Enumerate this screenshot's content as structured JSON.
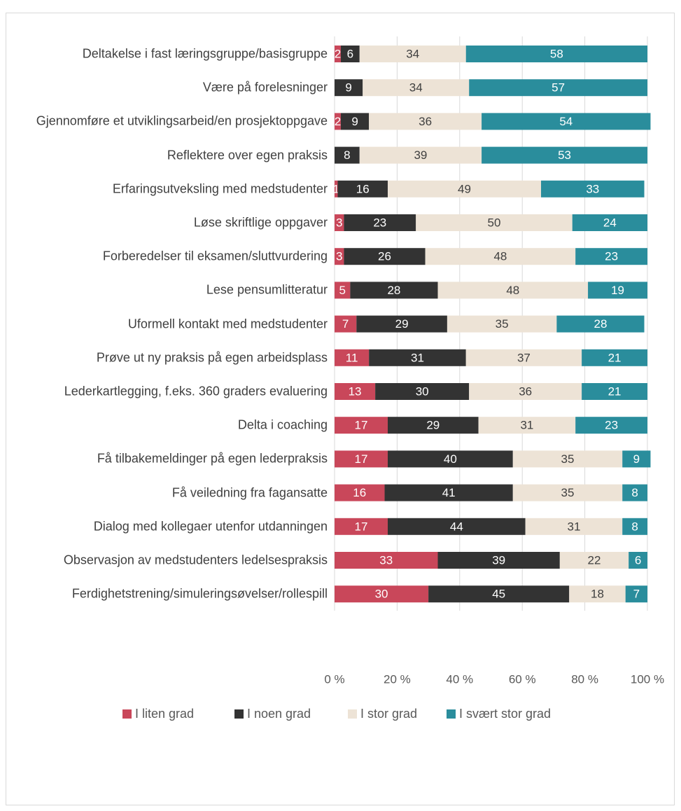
{
  "chart_data": {
    "type": "stacked_barh",
    "categories": [
      "Deltakelse i fast læringsgruppe/basisgruppe",
      "Være på forelesninger",
      "Gjennomføre et utviklingsarbeid/en prosjektoppgave",
      "Reflektere over egen praksis",
      "Erfaringsutveksling med medstudenter",
      "Løse skriftlige oppgaver",
      "Forberedelser til eksamen/sluttvurdering",
      "Lese pensumlitteratur",
      "Uformell kontakt med medstudenter",
      "Prøve ut ny praksis på egen arbeidsplass",
      "Lederkartlegging, f.eks. 360 graders evaluering",
      "Delta i coaching",
      "Få tilbakemeldinger på egen lederpraksis",
      "Få veiledning fra fagansatte",
      "Dialog med kollegaer utenfor utdanningen",
      "Observasjon av medstudenters ledelsespraksis",
      "Ferdighetstrening/simuleringsøvelser/rollespill"
    ],
    "series": [
      {
        "name": "I liten grad",
        "color": "#c9475a",
        "values": [
          2,
          null,
          2,
          null,
          1,
          3,
          3,
          5,
          7,
          11,
          13,
          17,
          17,
          16,
          17,
          33,
          30
        ]
      },
      {
        "name": "I noen grad",
        "color": "#333333",
        "values": [
          6,
          9,
          9,
          8,
          16,
          23,
          26,
          28,
          29,
          31,
          30,
          29,
          40,
          41,
          44,
          39,
          45
        ]
      },
      {
        "name": "I stor grad",
        "color": "#ede3d6",
        "values": [
          34,
          34,
          36,
          39,
          49,
          50,
          48,
          48,
          35,
          37,
          36,
          31,
          35,
          35,
          31,
          22,
          18
        ]
      },
      {
        "name": "I svært stor grad",
        "color": "#2a8d9c",
        "values": [
          58,
          57,
          54,
          53,
          33,
          24,
          23,
          19,
          28,
          21,
          21,
          23,
          9,
          8,
          8,
          6,
          7
        ]
      }
    ],
    "xlim": [
      0,
      100
    ],
    "xticks": [
      {
        "value": 0,
        "label": "0 %"
      },
      {
        "value": 20,
        "label": "20 %"
      },
      {
        "value": 40,
        "label": "40 %"
      },
      {
        "value": 60,
        "label": "60 %"
      },
      {
        "value": 80,
        "label": "80 %"
      },
      {
        "value": 100,
        "label": "100 %"
      }
    ],
    "grid": true,
    "legend": "bottom"
  }
}
